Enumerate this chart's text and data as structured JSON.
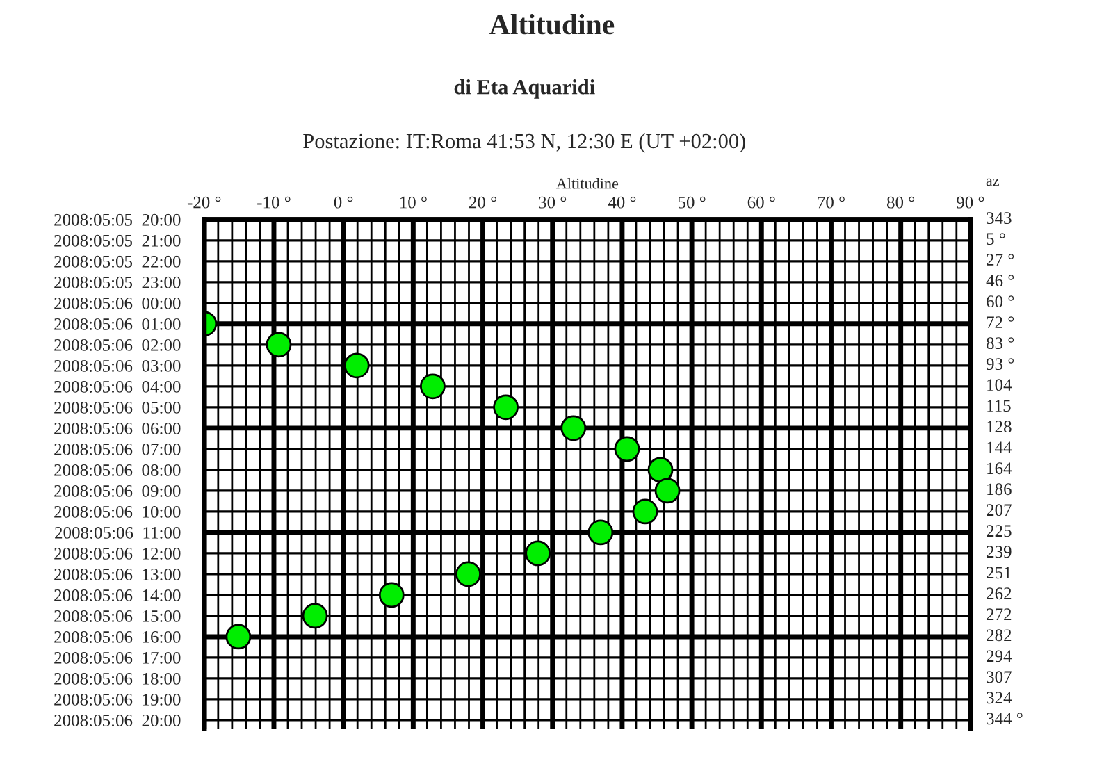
{
  "chart_data": {
    "type": "scatter",
    "orientation": "horizontal",
    "title": "Altitudine",
    "subtitle": "di Eta Aquaridi",
    "annotations": [
      "Postazione: IT:Roma 41:53 N, 12:30 E (UT +02:00)"
    ],
    "xlabel": "Altitudine",
    "y2label": "az",
    "categories": [
      "2008:05:05  20:00",
      "2008:05:05  21:00",
      "2008:05:05  22:00",
      "2008:05:05  23:00",
      "2008:05:06  00:00",
      "2008:05:06  01:00",
      "2008:05:06  02:00",
      "2008:05:06  03:00",
      "2008:05:06  04:00",
      "2008:05:06  05:00",
      "2008:05:06  06:00",
      "2008:05:06  07:00",
      "2008:05:06  08:00",
      "2008:05:06  09:00",
      "2008:05:06  10:00",
      "2008:05:06  11:00",
      "2008:05:06  12:00",
      "2008:05:06  13:00",
      "2008:05:06  14:00",
      "2008:05:06  15:00",
      "2008:05:06  16:00",
      "2008:05:06  17:00",
      "2008:05:06  18:00",
      "2008:05:06  19:00",
      "2008:05:06  20:00"
    ],
    "y2_categories": [
      "343",
      "5 °",
      "27 °",
      "46 °",
      "60 °",
      "72 °",
      "83 °",
      "93 °",
      "104",
      "115",
      "128",
      "144",
      "164",
      "186",
      "207",
      "225",
      "239",
      "251",
      "262",
      "272",
      "282",
      "294",
      "307",
      "324",
      "344 °"
    ],
    "series": [
      {
        "color": "#00ee00",
        "values": [
          null,
          null,
          null,
          null,
          null,
          -20,
          -9.3,
          1.9,
          12.8,
          23.3,
          33,
          40.7,
          45.5,
          46.5,
          43.3,
          36.9,
          27.9,
          17.9,
          6.9,
          -4.1,
          -15.1,
          null,
          null,
          null,
          null
        ]
      }
    ],
    "xlim": [
      -20,
      90
    ],
    "xticks": [
      {
        "value": -20,
        "label": "-20 °"
      },
      {
        "value": -10,
        "label": "-10 °"
      },
      {
        "value": 0,
        "label": "0 °"
      },
      {
        "value": 10,
        "label": "10 °"
      },
      {
        "value": 20,
        "label": "20 °"
      },
      {
        "value": 30,
        "label": "30 °"
      },
      {
        "value": 40,
        "label": "40 °"
      },
      {
        "value": 50,
        "label": "50 °"
      },
      {
        "value": 60,
        "label": "60 °"
      },
      {
        "value": 70,
        "label": "70 °"
      },
      {
        "value": 80,
        "label": "80 °"
      },
      {
        "value": 90,
        "label": "90 °"
      }
    ],
    "grid": true,
    "marker": "circle",
    "legend": false
  }
}
